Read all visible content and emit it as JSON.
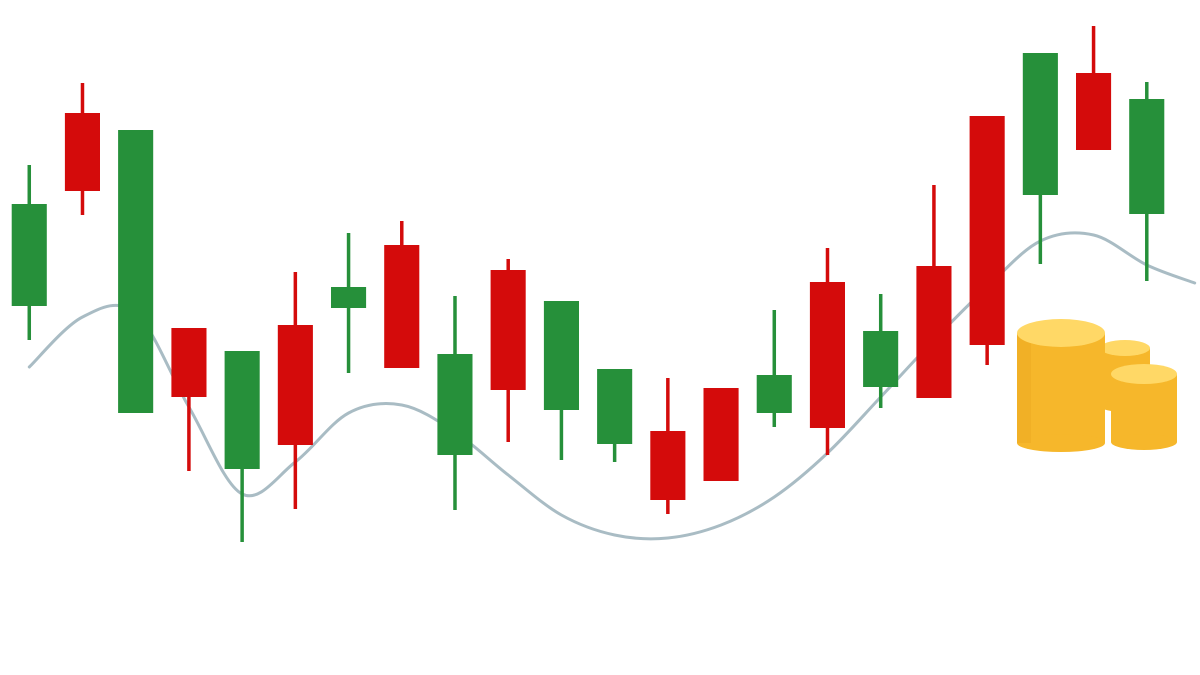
{
  "colors": {
    "up": "#26903a",
    "down": "#d40b0b",
    "trend": "#a9bcc4",
    "coin_side": "#f6b72b",
    "coin_top": "#ffd866",
    "coin_shade": "#e9a31d"
  },
  "chart_data": {
    "type": "candlestick",
    "title": "",
    "xlabel": "",
    "ylabel": "",
    "grid": false,
    "axes_visible": false,
    "candles": [
      {
        "dir": "up",
        "open": 369,
        "close": 471,
        "high": 510,
        "low": 335
      },
      {
        "dir": "down",
        "open": 562,
        "close": 484,
        "high": 592,
        "low": 460
      },
      {
        "dir": "up",
        "open": 262,
        "close": 545,
        "high": 545,
        "low": 262
      },
      {
        "dir": "down",
        "open": 347,
        "close": 278,
        "high": 347,
        "low": 204
      },
      {
        "dir": "up",
        "open": 206,
        "close": 324,
        "high": 324,
        "low": 133
      },
      {
        "dir": "down",
        "open": 350,
        "close": 230,
        "high": 403,
        "low": 166
      },
      {
        "dir": "up",
        "open": 367,
        "close": 388,
        "high": 442,
        "low": 302
      },
      {
        "dir": "down",
        "open": 430,
        "close": 307,
        "high": 454,
        "low": 307
      },
      {
        "dir": "up",
        "open": 220,
        "close": 321,
        "high": 379,
        "low": 165
      },
      {
        "dir": "down",
        "open": 405,
        "close": 285,
        "high": 416,
        "low": 233
      },
      {
        "dir": "up",
        "open": 265,
        "close": 374,
        "high": 374,
        "low": 215
      },
      {
        "dir": "up",
        "open": 231,
        "close": 306,
        "high": 306,
        "low": 213
      },
      {
        "dir": "down",
        "open": 244,
        "close": 175,
        "high": 297,
        "low": 161
      },
      {
        "dir": "down",
        "open": 287,
        "close": 194,
        "high": 287,
        "low": 194
      },
      {
        "dir": "up",
        "open": 262,
        "close": 300,
        "high": 365,
        "low": 248
      },
      {
        "dir": "down",
        "open": 393,
        "close": 247,
        "high": 427,
        "low": 220
      },
      {
        "dir": "up",
        "open": 288,
        "close": 344,
        "high": 381,
        "low": 267
      },
      {
        "dir": "down",
        "open": 409,
        "close": 277,
        "high": 490,
        "low": 277
      },
      {
        "dir": "down",
        "open": 559,
        "close": 330,
        "high": 559,
        "low": 310
      },
      {
        "dir": "up",
        "open": 480,
        "close": 622,
        "high": 622,
        "low": 411
      },
      {
        "dir": "down",
        "open": 602,
        "close": 525,
        "high": 649,
        "low": 525
      },
      {
        "dir": "up",
        "open": 461,
        "close": 576,
        "high": 593,
        "low": 394
      }
    ],
    "trend_line": [
      {
        "x": 0,
        "y": 308
      },
      {
        "x": 1,
        "y": 358
      },
      {
        "x": 2,
        "y": 362
      },
      {
        "x": 3,
        "y": 268
      },
      {
        "x": 4,
        "y": 181
      },
      {
        "x": 5,
        "y": 213
      },
      {
        "x": 6,
        "y": 262
      },
      {
        "x": 7,
        "y": 270
      },
      {
        "x": 8,
        "y": 243
      },
      {
        "x": 9,
        "y": 200
      },
      {
        "x": 10,
        "y": 160
      },
      {
        "x": 11,
        "y": 140
      },
      {
        "x": 12,
        "y": 137
      },
      {
        "x": 13,
        "y": 150
      },
      {
        "x": 14,
        "y": 178
      },
      {
        "x": 15,
        "y": 222
      },
      {
        "x": 16,
        "y": 278
      },
      {
        "x": 17,
        "y": 335
      },
      {
        "x": 18,
        "y": 388
      },
      {
        "x": 19,
        "y": 434
      },
      {
        "x": 20,
        "y": 440
      },
      {
        "x": 21,
        "y": 410
      },
      {
        "x": 21.9,
        "y": 392
      }
    ],
    "ylim": [
      0,
      675
    ],
    "xlim": [
      -0.55,
      22.0
    ]
  },
  "decoration": {
    "coins": "coins-stack-icon"
  }
}
